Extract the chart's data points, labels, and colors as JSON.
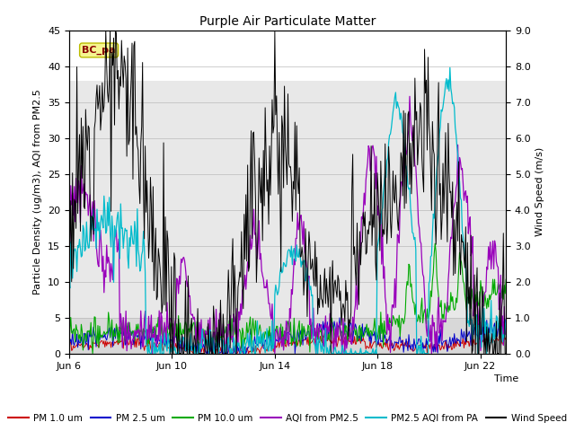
{
  "title": "Purple Air Particulate Matter",
  "xlabel": "Time",
  "ylabel_left": "Particle Density (ug/m3), AQI from PM2.5",
  "ylabel_right": "Wind Speed (m/s)",
  "ylim_left": [
    0,
    45
  ],
  "ylim_right": [
    0.0,
    9.0
  ],
  "yticks_left": [
    0,
    5,
    10,
    15,
    20,
    25,
    30,
    35,
    40,
    45
  ],
  "yticks_right": [
    0.0,
    1.0,
    2.0,
    3.0,
    4.0,
    5.0,
    6.0,
    7.0,
    8.0,
    9.0
  ],
  "xtick_labels": [
    "Jun 6",
    "Jun 10",
    "Jun 14",
    "Jun 18",
    "Jun 22"
  ],
  "xtick_pos": [
    0,
    4,
    8,
    12,
    16
  ],
  "xlim": [
    0,
    17
  ],
  "annotation_text": "BC_pa",
  "colors": {
    "pm1": "#cc0000",
    "pm25": "#0000cc",
    "pm10": "#00aa00",
    "aqi_pm25": "#9900bb",
    "pm25_aqi_pa": "#00bbcc",
    "wind": "#000000"
  },
  "legend_labels": [
    "PM 1.0 um",
    "PM 2.5 um",
    "PM 10.0 um",
    "AQI from PM2.5",
    "PM2.5 AQI from PA",
    "Wind Speed"
  ],
  "band_light_ymin": 5,
  "band_light_ymax": 38,
  "band_light_color": "#e8e8e8",
  "n_points": 500,
  "seed": 12
}
